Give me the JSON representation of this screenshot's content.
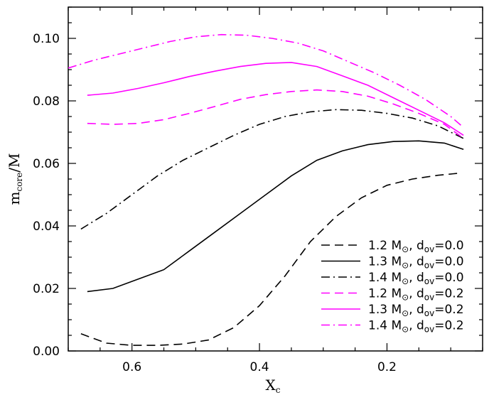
{
  "chart_data": {
    "type": "line",
    "xlabel": {
      "main": "X",
      "sub": "c"
    },
    "ylabel": {
      "main": "m",
      "sub": "core",
      "suffix": "/M"
    },
    "xlim": [
      0.7,
      0.05
    ],
    "ylim": [
      0.0,
      0.11
    ],
    "x_ticks": [
      "0.6",
      "0.4",
      "0.2"
    ],
    "x_tick_values": [
      0.6,
      0.4,
      0.2
    ],
    "y_ticks": [
      "0.00",
      "0.02",
      "0.04",
      "0.06",
      "0.08",
      "0.10"
    ],
    "y_tick_values": [
      0.0,
      0.02,
      0.04,
      0.06,
      0.08,
      0.1
    ],
    "x_minor_step": 0.05,
    "y_minor_step": 0.005,
    "grid": false,
    "legend_position": "bottom-right",
    "series": [
      {
        "mass": "1.2",
        "dov": "0.0",
        "color": "#000000",
        "dash": "dash",
        "x": [
          0.68,
          0.64,
          0.6,
          0.56,
          0.52,
          0.48,
          0.44,
          0.4,
          0.36,
          0.32,
          0.28,
          0.24,
          0.2,
          0.16,
          0.12,
          0.09
        ],
        "y": [
          0.0055,
          0.0025,
          0.0018,
          0.0018,
          0.0022,
          0.0035,
          0.0075,
          0.0145,
          0.024,
          0.035,
          0.043,
          0.049,
          0.053,
          0.055,
          0.0562,
          0.0568
        ]
      },
      {
        "mass": "1.3",
        "dov": "0.0",
        "color": "#000000",
        "dash": "solid",
        "x": [
          0.67,
          0.63,
          0.59,
          0.55,
          0.51,
          0.47,
          0.43,
          0.39,
          0.35,
          0.31,
          0.27,
          0.23,
          0.19,
          0.15,
          0.11,
          0.08
        ],
        "y": [
          0.019,
          0.02,
          0.023,
          0.026,
          0.032,
          0.038,
          0.044,
          0.05,
          0.056,
          0.061,
          0.064,
          0.066,
          0.067,
          0.0672,
          0.0665,
          0.0645
        ]
      },
      {
        "mass": "1.4",
        "dov": "0.0",
        "color": "#000000",
        "dash": "dashdot",
        "x": [
          0.68,
          0.64,
          0.6,
          0.56,
          0.52,
          0.48,
          0.44,
          0.4,
          0.36,
          0.32,
          0.28,
          0.24,
          0.2,
          0.16,
          0.12,
          0.08
        ],
        "y": [
          0.039,
          0.044,
          0.05,
          0.056,
          0.061,
          0.065,
          0.069,
          0.0725,
          0.075,
          0.0765,
          0.0772,
          0.077,
          0.076,
          0.0745,
          0.072,
          0.068
        ]
      },
      {
        "mass": "1.2",
        "dov": "0.2",
        "color": "#ff00ff",
        "dash": "dash",
        "x": [
          0.67,
          0.63,
          0.59,
          0.55,
          0.51,
          0.47,
          0.43,
          0.39,
          0.35,
          0.31,
          0.27,
          0.23,
          0.19,
          0.15,
          0.11,
          0.08
        ],
        "y": [
          0.0728,
          0.0725,
          0.0728,
          0.074,
          0.076,
          0.0782,
          0.0805,
          0.082,
          0.083,
          0.0835,
          0.083,
          0.0815,
          0.079,
          0.076,
          0.0725,
          0.068
        ]
      },
      {
        "mass": "1.3",
        "dov": "0.2",
        "color": "#ff00ff",
        "dash": "solid",
        "x": [
          0.67,
          0.63,
          0.59,
          0.55,
          0.51,
          0.47,
          0.43,
          0.39,
          0.35,
          0.31,
          0.27,
          0.23,
          0.19,
          0.15,
          0.11,
          0.08
        ],
        "y": [
          0.0818,
          0.0825,
          0.084,
          0.0858,
          0.0878,
          0.0895,
          0.091,
          0.092,
          0.0923,
          0.091,
          0.088,
          0.085,
          0.081,
          0.077,
          0.073,
          0.069
        ]
      },
      {
        "mass": "1.4",
        "dov": "0.2",
        "color": "#ff00ff",
        "dash": "dashdot",
        "x": [
          0.7,
          0.66,
          0.62,
          0.58,
          0.54,
          0.5,
          0.46,
          0.42,
          0.38,
          0.34,
          0.3,
          0.26,
          0.22,
          0.18,
          0.14,
          0.1,
          0.08
        ],
        "y": [
          0.0905,
          0.093,
          0.095,
          0.097,
          0.099,
          0.1005,
          0.1012,
          0.101,
          0.1,
          0.0985,
          0.096,
          0.0925,
          0.089,
          0.085,
          0.0805,
          0.075,
          0.0715
        ]
      }
    ],
    "legend": [
      {
        "mass": "1.2",
        "unit": "M",
        "sun": "⊙",
        "sep": ",",
        "d": "d",
        "dsub": "ov",
        "eq": "=0.0"
      },
      {
        "mass": "1.3",
        "unit": "M",
        "sun": "⊙",
        "sep": ",",
        "d": "d",
        "dsub": "ov",
        "eq": "=0.0"
      },
      {
        "mass": "1.4",
        "unit": "M",
        "sun": "⊙",
        "sep": ",",
        "d": "d",
        "dsub": "ov",
        "eq": "=0.0"
      },
      {
        "mass": "1.2",
        "unit": "M",
        "sun": "⊙",
        "sep": ",",
        "d": "d",
        "dsub": "ov",
        "eq": "=0.2"
      },
      {
        "mass": "1.3",
        "unit": "M",
        "sun": "⊙",
        "sep": ",",
        "d": "d",
        "dsub": "ov",
        "eq": "=0.2"
      },
      {
        "mass": "1.4",
        "unit": "M",
        "sun": "⊙",
        "sep": ",",
        "d": "d",
        "dsub": "ov",
        "eq": "=0.2"
      }
    ]
  }
}
